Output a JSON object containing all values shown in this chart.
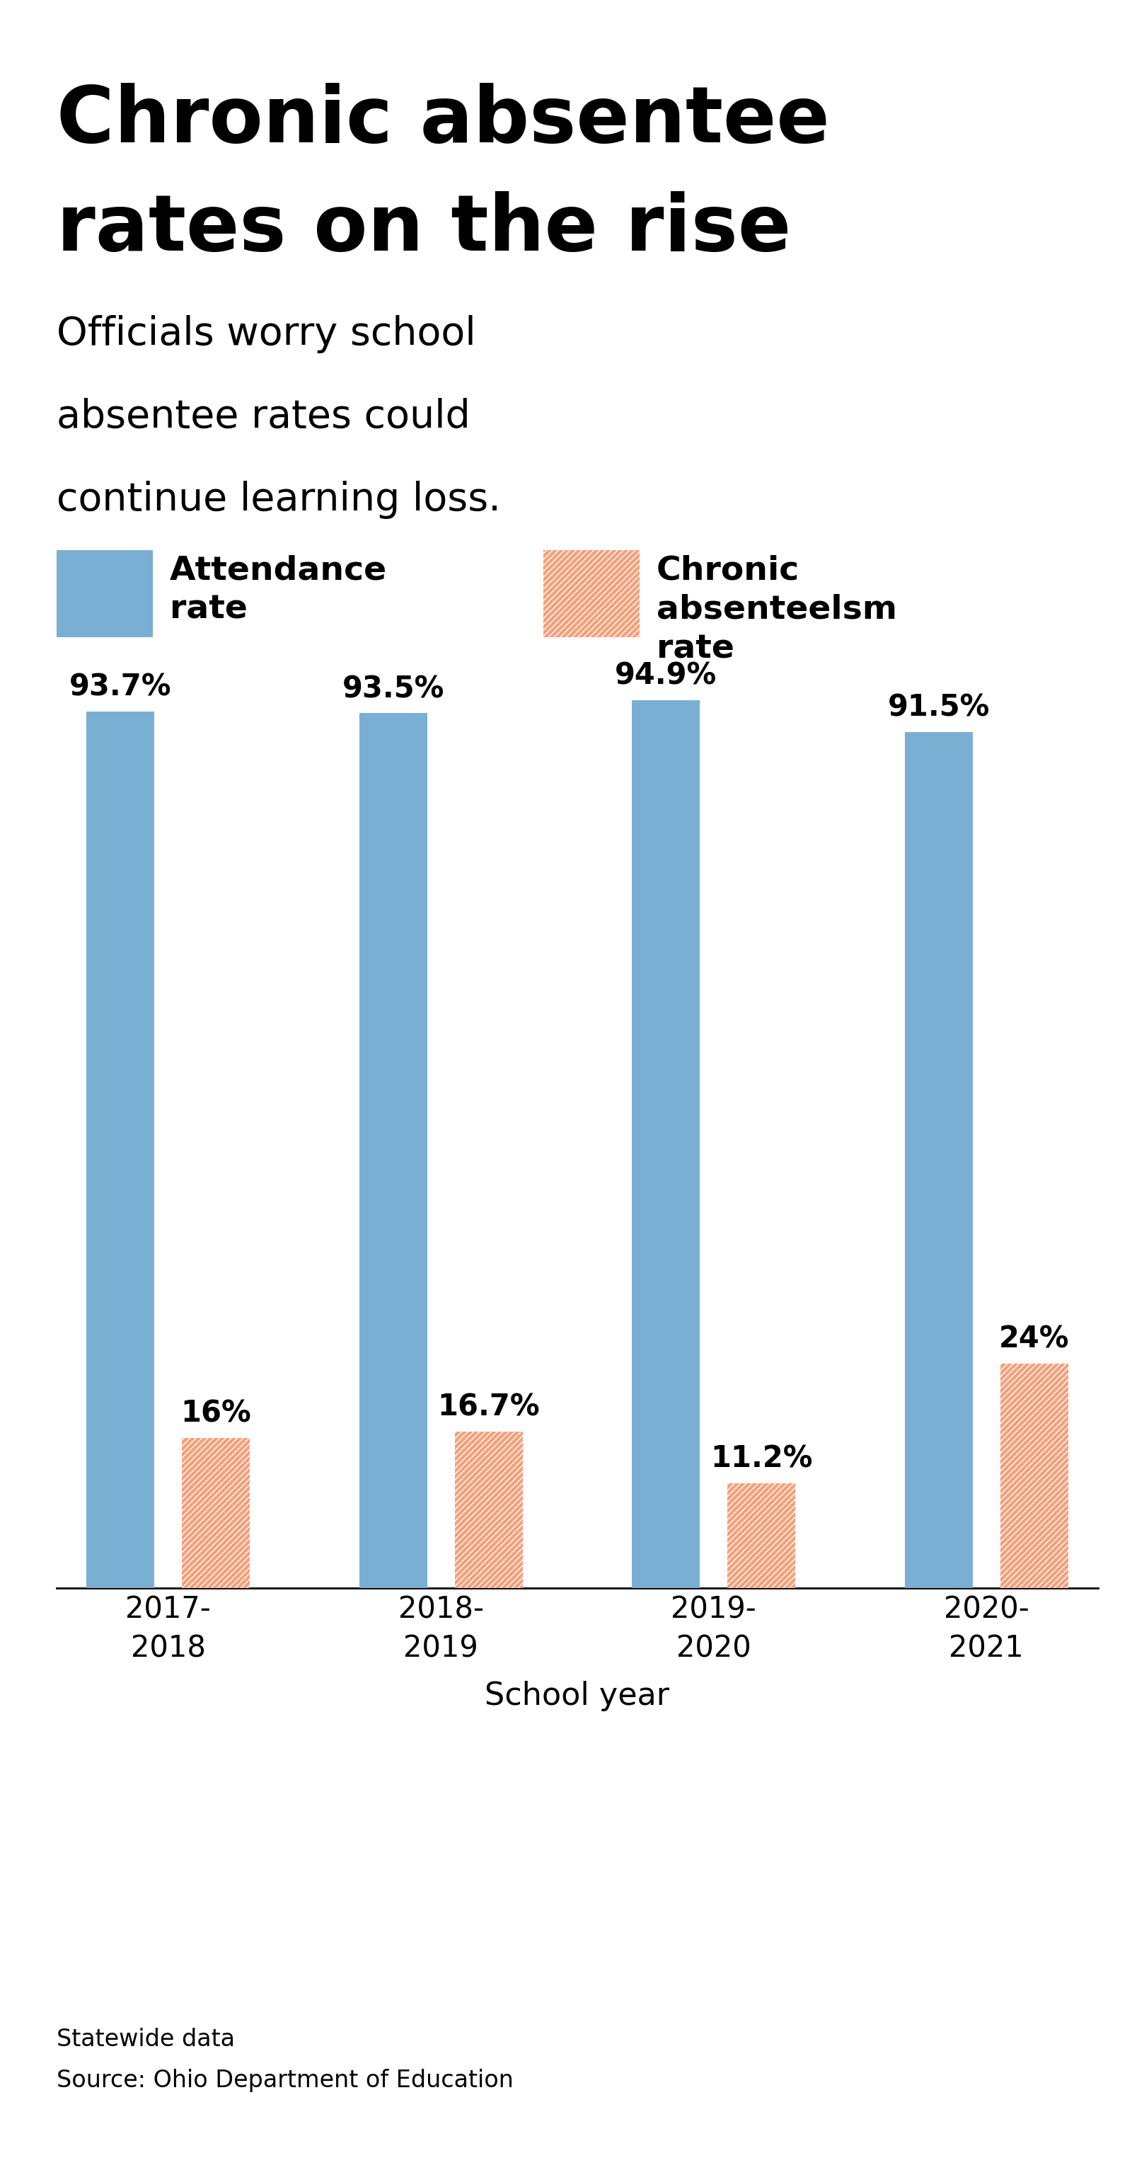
{
  "title_line1": "Chronic absentee",
  "title_line2": "rates on the rise",
  "subtitle_lines": [
    "Officials worry school",
    "absentee rates could",
    "continue learning loss."
  ],
  "legend_attendance": "Attendance\nrate",
  "legend_absentee": "Chronic\nabsenteelsm\nrate",
  "categories": [
    "2017-\n2018",
    "2018-\n2019",
    "2019-\n2020",
    "2020-\n2021"
  ],
  "xlabel": "School year",
  "attendance_values": [
    93.7,
    93.5,
    94.9,
    91.5
  ],
  "absentee_values": [
    16.0,
    16.7,
    11.2,
    24.0
  ],
  "attendance_labels": [
    "93.7%",
    "93.5%",
    "94.9%",
    "91.5%"
  ],
  "absentee_labels": [
    "16%",
    "16.7%",
    "11.2%",
    "24%"
  ],
  "attendance_color": "#7aafd4",
  "absentee_face_color": "#f5a07a",
  "absentee_hatch_color": "#e8664a",
  "absentee_hatch": "////",
  "source_line1": "Statewide data",
  "source_line2": "Source: Ohio Department of Education",
  "background_color": "#ffffff",
  "ylim_max": 100,
  "title_fontsize": 80,
  "subtitle_fontsize": 40,
  "legend_fontsize": 34,
  "label_fontsize": 30,
  "tick_fontsize": 30,
  "xlabel_fontsize": 32,
  "source_fontsize": 24
}
